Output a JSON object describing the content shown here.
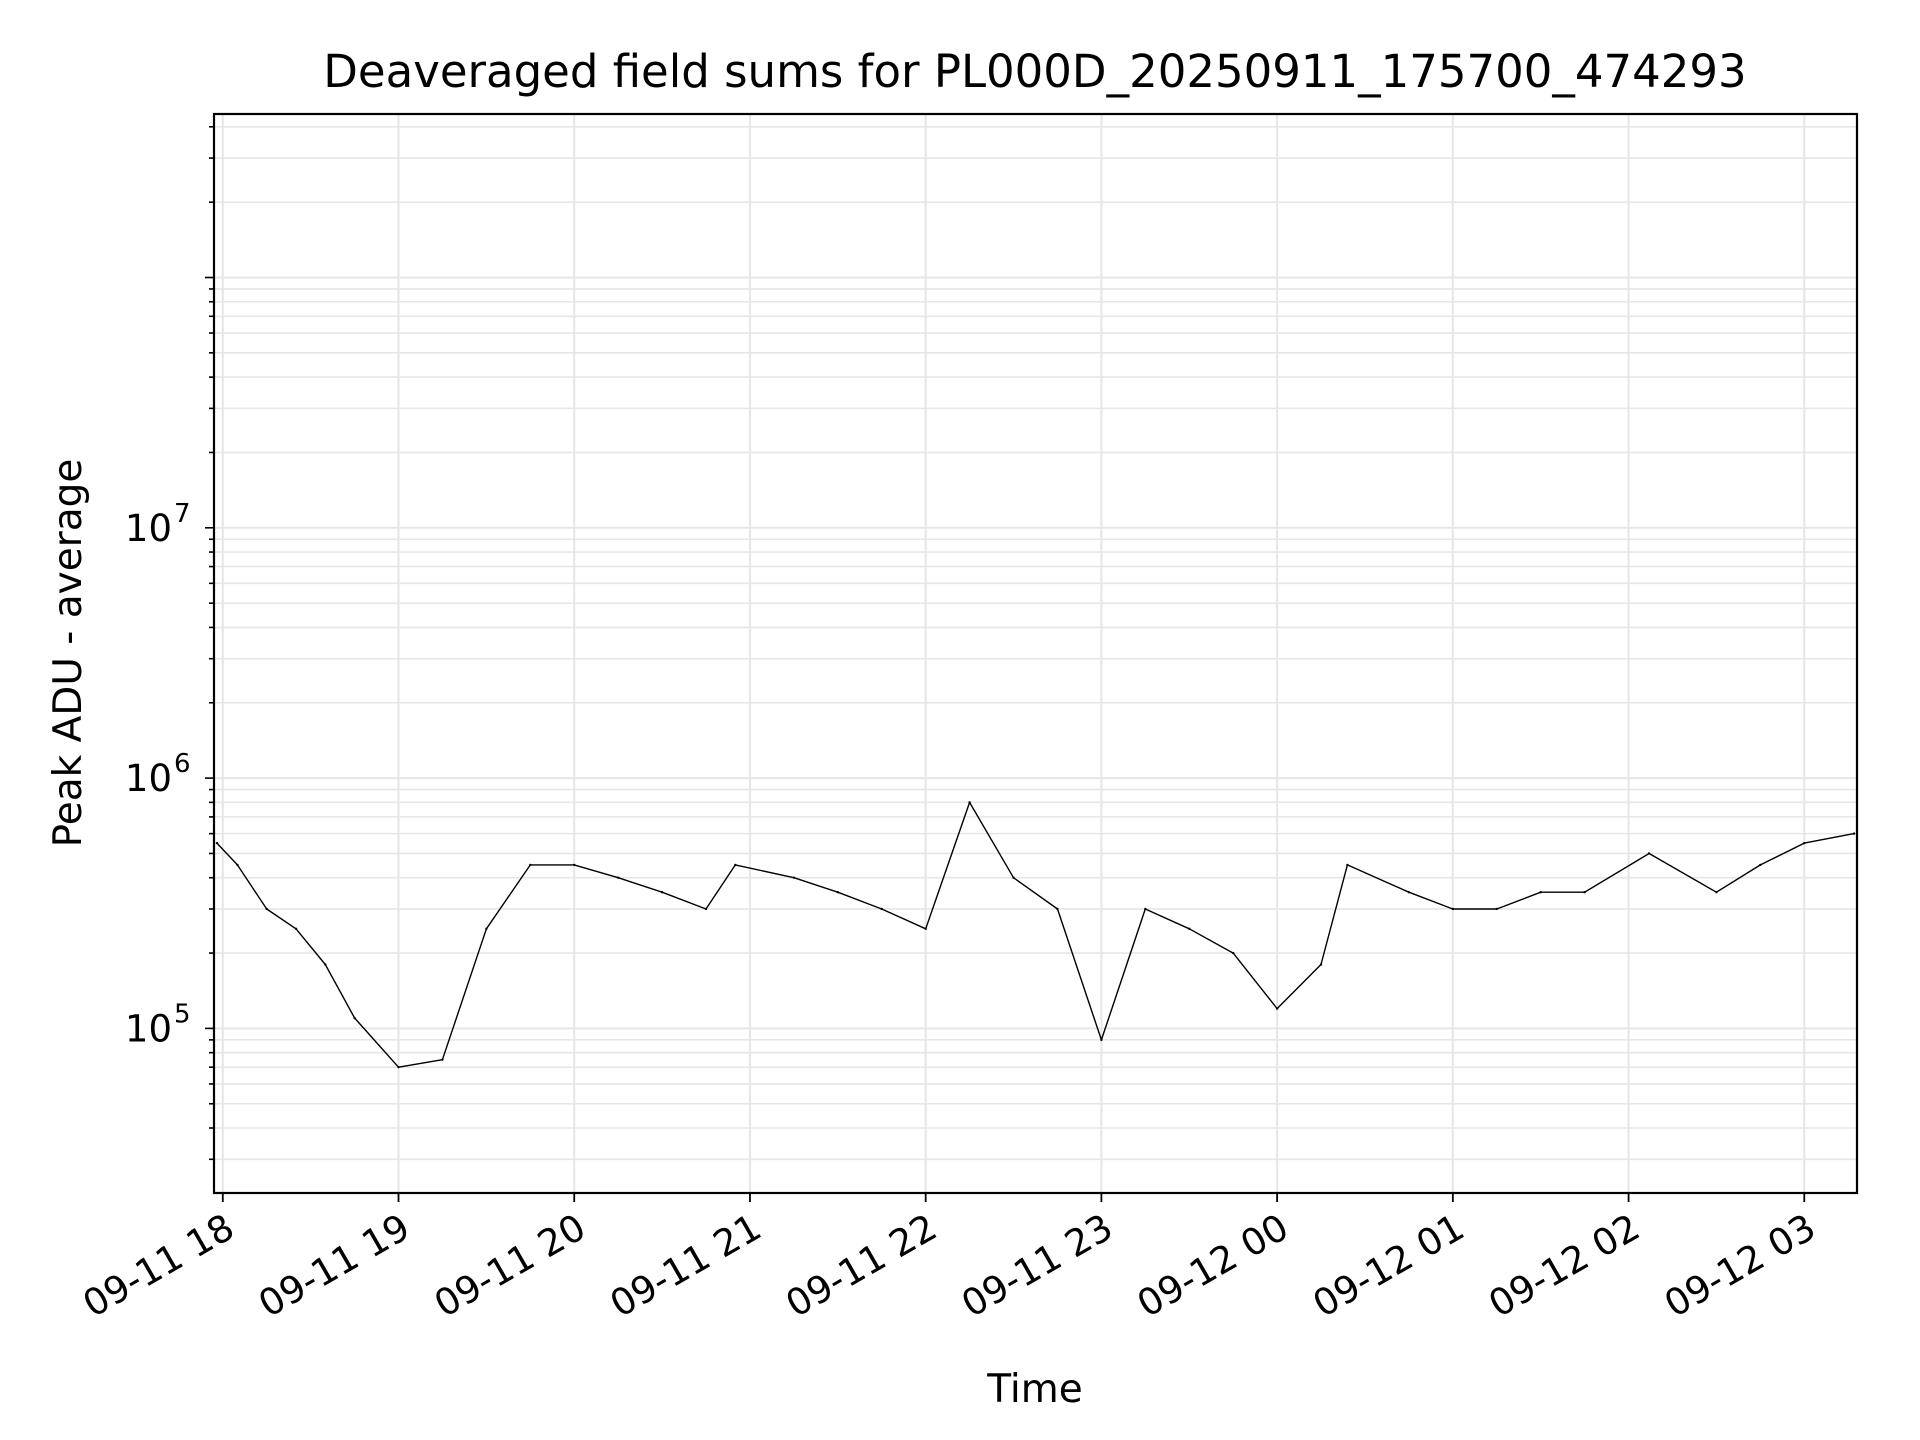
{
  "chart_data": {
    "type": "line",
    "title": "Deaveraged field sums for PL000D_20250911_175700_474293",
    "xlabel": "Time",
    "ylabel": "Peak ADU - average",
    "y_scale": "log",
    "grid": true,
    "line_color": "#000000",
    "grid_color": "#e6e6e6",
    "xlim": [
      "2025-09-11 17:57:00",
      "2025-09-12 03:18:00"
    ],
    "ylim": [
      22000,
      450000000
    ],
    "x_ticks": [
      {
        "value": "2025-09-11 18:00",
        "label": "09-11 18"
      },
      {
        "value": "2025-09-11 19:00",
        "label": "09-11 19"
      },
      {
        "value": "2025-09-11 20:00",
        "label": "09-11 20"
      },
      {
        "value": "2025-09-11 21:00",
        "label": "09-11 21"
      },
      {
        "value": "2025-09-11 22:00",
        "label": "09-11 22"
      },
      {
        "value": "2025-09-11 23:00",
        "label": "09-11 23"
      },
      {
        "value": "2025-09-12 00:00",
        "label": "09-12 00"
      },
      {
        "value": "2025-09-12 01:00",
        "label": "09-12 01"
      },
      {
        "value": "2025-09-12 02:00",
        "label": "09-12 02"
      },
      {
        "value": "2025-09-12 03:00",
        "label": "09-12 03"
      }
    ],
    "y_ticks": [
      {
        "value": 100000,
        "base": "10",
        "exp": "5"
      },
      {
        "value": 1000000,
        "base": "10",
        "exp": "6"
      },
      {
        "value": 10000000,
        "base": "10",
        "exp": "7"
      }
    ],
    "series": [
      {
        "x": [
          "2025-09-11 17:58",
          "2025-09-11 18:05",
          "2025-09-11 18:15",
          "2025-09-11 18:25",
          "2025-09-11 18:35",
          "2025-09-11 18:45",
          "2025-09-11 19:00",
          "2025-09-11 19:15",
          "2025-09-11 19:30",
          "2025-09-11 19:45",
          "2025-09-11 20:00",
          "2025-09-11 20:15",
          "2025-09-11 20:30",
          "2025-09-11 20:45",
          "2025-09-11 20:55",
          "2025-09-11 21:15",
          "2025-09-11 21:30",
          "2025-09-11 21:45",
          "2025-09-11 22:00",
          "2025-09-11 22:15",
          "2025-09-11 22:30",
          "2025-09-11 22:45",
          "2025-09-11 23:00",
          "2025-09-11 23:15",
          "2025-09-11 23:30",
          "2025-09-11 23:45",
          "2025-09-12 00:00",
          "2025-09-12 00:15",
          "2025-09-12 00:24",
          "2025-09-12 00:45",
          "2025-09-12 01:00",
          "2025-09-12 01:15",
          "2025-09-12 01:30",
          "2025-09-12 01:45",
          "2025-09-12 02:07",
          "2025-09-12 02:30",
          "2025-09-12 02:45",
          "2025-09-12 03:00",
          "2025-09-12 03:17"
        ],
        "y": [
          550000,
          450000,
          300000,
          250000,
          180000,
          110000,
          70000,
          75000,
          250000,
          450000,
          450000,
          400000,
          350000,
          300000,
          450000,
          400000,
          350000,
          300000,
          250000,
          800000,
          400000,
          300000,
          90000,
          300000,
          250000,
          200000,
          120000,
          180000,
          450000,
          350000,
          300000,
          300000,
          350000,
          350000,
          500000,
          350000,
          450000,
          550000,
          600000
        ]
      }
    ]
  }
}
